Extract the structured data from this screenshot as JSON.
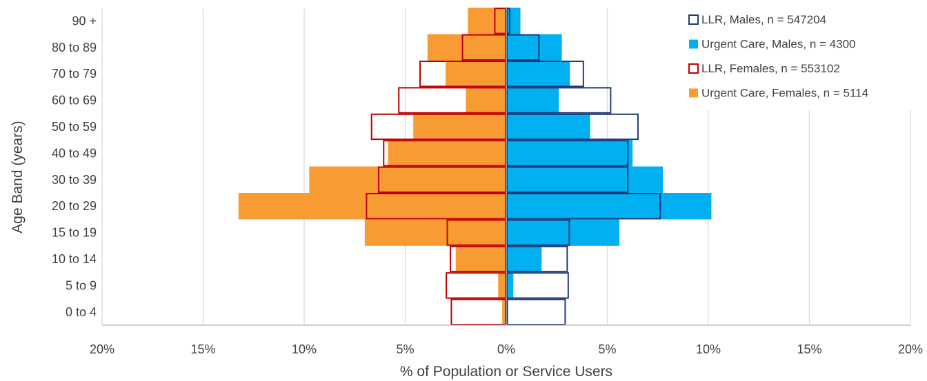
{
  "chart_data": {
    "type": "bar",
    "orientation": "horizontal",
    "layout": "population-pyramid",
    "categories": [
      "0 to 4",
      "5 to 9",
      "10 to 14",
      "15 to 19",
      "20 to 29",
      "30 to 39",
      "40 to 49",
      "50 to 59",
      "60 to 69",
      "70 to 79",
      "80 to 89",
      "90 +"
    ],
    "xlabel": "% of Population or Service Users",
    "ylabel": "Age Band (years)",
    "xlim": [
      -20,
      20
    ],
    "xticks": [
      -20,
      -15,
      -10,
      -5,
      0,
      5,
      10,
      15,
      20
    ],
    "xtick_labels": [
      "20%",
      "15%",
      "10%",
      "5%",
      "0%",
      "5%",
      "10%",
      "15%",
      "20%"
    ],
    "grid": "vertical",
    "legend_position": "top-right",
    "series": [
      {
        "name": "LLR, Males, n = 547204",
        "style": "outline",
        "side": "right",
        "color": "#1f3a7a",
        "values": [
          2.95,
          3.1,
          3.05,
          3.15,
          7.65,
          6.05,
          6.05,
          6.55,
          5.2,
          3.85,
          1.65,
          0.2
        ]
      },
      {
        "name": "Urgent Care, Males, n = 4300",
        "style": "fill",
        "side": "right",
        "color": "#00b0f0",
        "values": [
          0.1,
          0.35,
          1.75,
          5.6,
          10.15,
          7.75,
          6.25,
          4.15,
          2.6,
          3.15,
          2.75,
          0.7
        ]
      },
      {
        "name": "LLR, Females, n = 553102",
        "style": "outline",
        "side": "left",
        "color": "#c00000",
        "values": [
          2.75,
          3.0,
          2.8,
          2.95,
          6.95,
          6.35,
          6.1,
          6.7,
          5.35,
          4.3,
          2.2,
          0.6
        ]
      },
      {
        "name": "Urgent Care, Females, n = 5114",
        "style": "fill",
        "side": "left",
        "color": "#f89b32",
        "values": [
          0.2,
          0.4,
          2.5,
          7.0,
          13.25,
          9.75,
          5.85,
          4.6,
          2.0,
          3.0,
          3.9,
          1.9
        ]
      }
    ]
  }
}
